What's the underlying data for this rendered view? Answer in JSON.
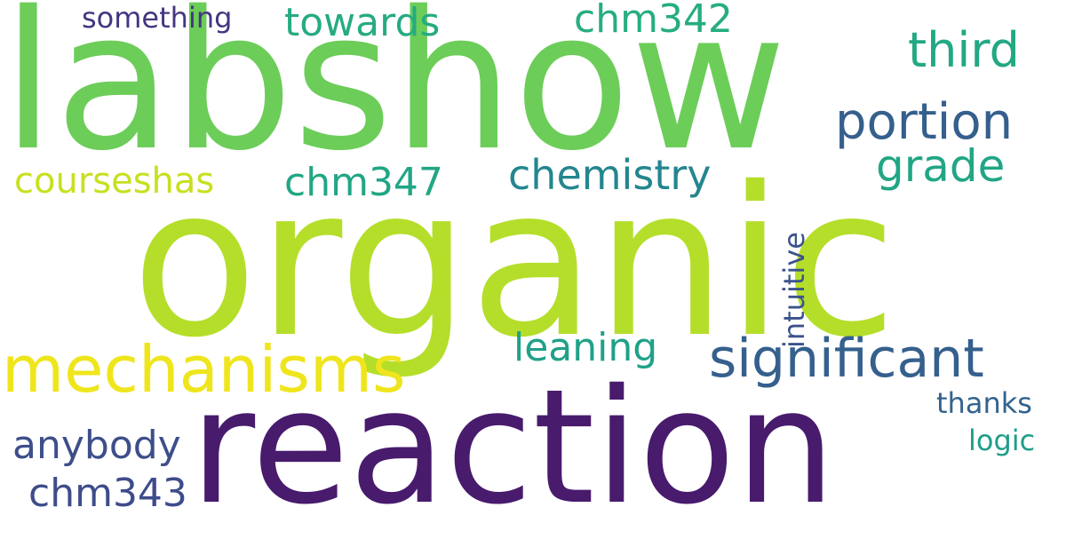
{
  "words": {
    "labshow": {
      "text": "labshow",
      "color": "#6ccd59"
    },
    "organic": {
      "text": "organic",
      "color": "#b5de2b"
    },
    "reaction": {
      "text": "reaction",
      "color": "#481b6d"
    },
    "mechanisms": {
      "text": "mechanisms",
      "color": "#efe51c"
    },
    "significant": {
      "text": "significant",
      "color": "#35608d"
    },
    "portion": {
      "text": "portion",
      "color": "#355f8d"
    },
    "third": {
      "text": "third",
      "color": "#22a884"
    },
    "grade": {
      "text": "grade",
      "color": "#21a685"
    },
    "chemistry": {
      "text": "chemistry",
      "color": "#24868e"
    },
    "towards": {
      "text": "towards",
      "color": "#25ab82"
    },
    "chm342": {
      "text": "chm342",
      "color": "#26ad81"
    },
    "something": {
      "text": "something",
      "color": "#453581"
    },
    "courseshas": {
      "text": "courseshas",
      "color": "#c8e020"
    },
    "chm347": {
      "text": "chm347",
      "color": "#21a685"
    },
    "leaning": {
      "text": "leaning",
      "color": "#1fa188"
    },
    "intuitive": {
      "text": "intuitive",
      "color": "#3b528b"
    },
    "anybody": {
      "text": "anybody",
      "color": "#3d4e8a"
    },
    "chm343": {
      "text": "chm343",
      "color": "#3e4c8a"
    },
    "thanks": {
      "text": "thanks",
      "color": "#33638d"
    },
    "logic": {
      "text": "logic",
      "color": "#1f9e89"
    }
  }
}
